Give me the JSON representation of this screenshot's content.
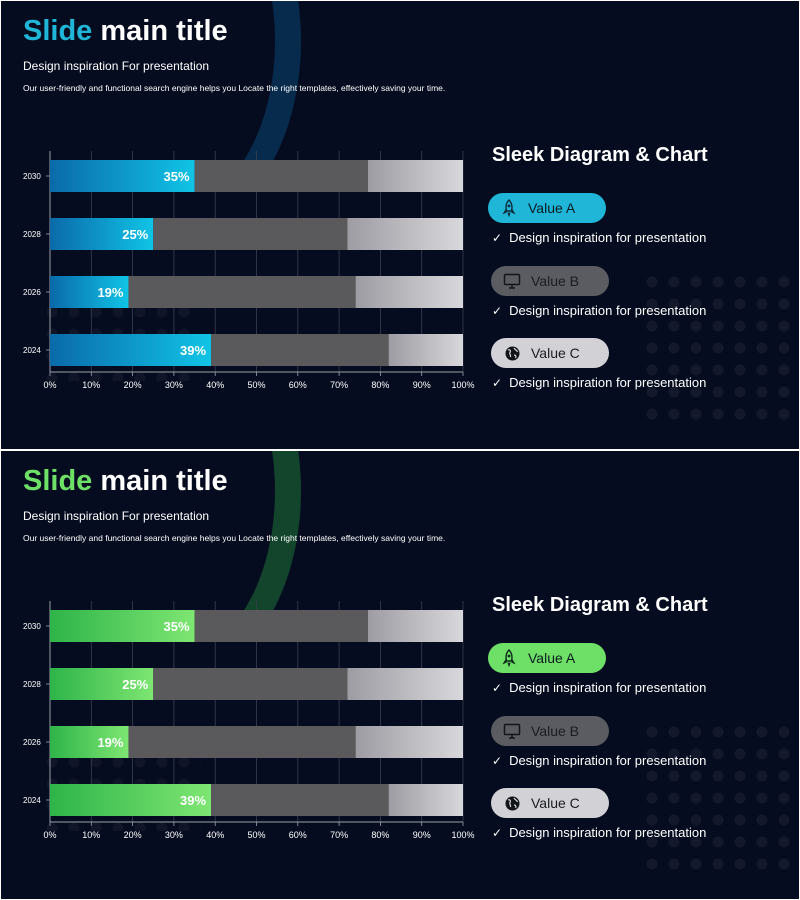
{
  "slides": [
    {
      "accent": "#1fb6d8",
      "grad_start": "#0a6aaa",
      "grad_end": "#10c4e6",
      "title_accent": "Slide",
      "title_rest": "main title",
      "subtitle": "Design inspiration For presentation",
      "description": "Our user-friendly and functional search engine helps you Locate the right templates, effectively saving your time.",
      "right_title": "Sleek Diagram & Chart",
      "legend": [
        {
          "label": "Value A",
          "icon": "rocket-icon"
        },
        {
          "label": "Value B",
          "icon": "monitor-icon"
        },
        {
          "label": "Value C",
          "icon": "globe-icon"
        }
      ],
      "items": [
        "Design inspiration for presentation",
        "Design inspiration for presentation",
        "Design inspiration for presentation"
      ],
      "chart_data": {
        "type": "bar",
        "orientation": "horizontal",
        "stacked": true,
        "categories": [
          "2030",
          "2028",
          "2026",
          "2024"
        ],
        "series": [
          {
            "name": "Value A",
            "values": [
              35,
              25,
              19,
              39
            ],
            "labels": [
              "35%",
              "25%",
              "19%",
              "39%"
            ]
          },
          {
            "name": "Value B",
            "values": [
              42,
              47,
              55,
              43
            ]
          },
          {
            "name": "Value C",
            "values": [
              23,
              28,
              26,
              18
            ]
          }
        ],
        "xlim": [
          0,
          100
        ],
        "xticks": [
          "0%",
          "10%",
          "20%",
          "30%",
          "40%",
          "50%",
          "60%",
          "70%",
          "80%",
          "90%",
          "100%"
        ],
        "grid": true
      }
    },
    {
      "accent": "#6ee067",
      "grad_start": "#2eb449",
      "grad_end": "#7ee672",
      "title_accent": "Slide",
      "title_rest": "main title",
      "subtitle": "Design inspiration For presentation",
      "description": "Our user-friendly and functional search engine helps you Locate the right templates, effectively saving your time.",
      "right_title": "Sleek Diagram & Chart",
      "legend": [
        {
          "label": "Value A",
          "icon": "rocket-icon"
        },
        {
          "label": "Value B",
          "icon": "monitor-icon"
        },
        {
          "label": "Value C",
          "icon": "globe-icon"
        }
      ],
      "items": [
        "Design inspiration for presentation",
        "Design inspiration for presentation",
        "Design inspiration for presentation"
      ],
      "chart_data": {
        "type": "bar",
        "orientation": "horizontal",
        "stacked": true,
        "categories": [
          "2030",
          "2028",
          "2026",
          "2024"
        ],
        "series": [
          {
            "name": "Value A",
            "values": [
              35,
              25,
              19,
              39
            ],
            "labels": [
              "35%",
              "25%",
              "19%",
              "39%"
            ]
          },
          {
            "name": "Value B",
            "values": [
              42,
              47,
              55,
              43
            ]
          },
          {
            "name": "Value C",
            "values": [
              23,
              28,
              26,
              18
            ]
          }
        ],
        "xlim": [
          0,
          100
        ],
        "xticks": [
          "0%",
          "10%",
          "20%",
          "30%",
          "40%",
          "50%",
          "60%",
          "70%",
          "80%",
          "90%",
          "100%"
        ],
        "grid": true
      }
    }
  ]
}
